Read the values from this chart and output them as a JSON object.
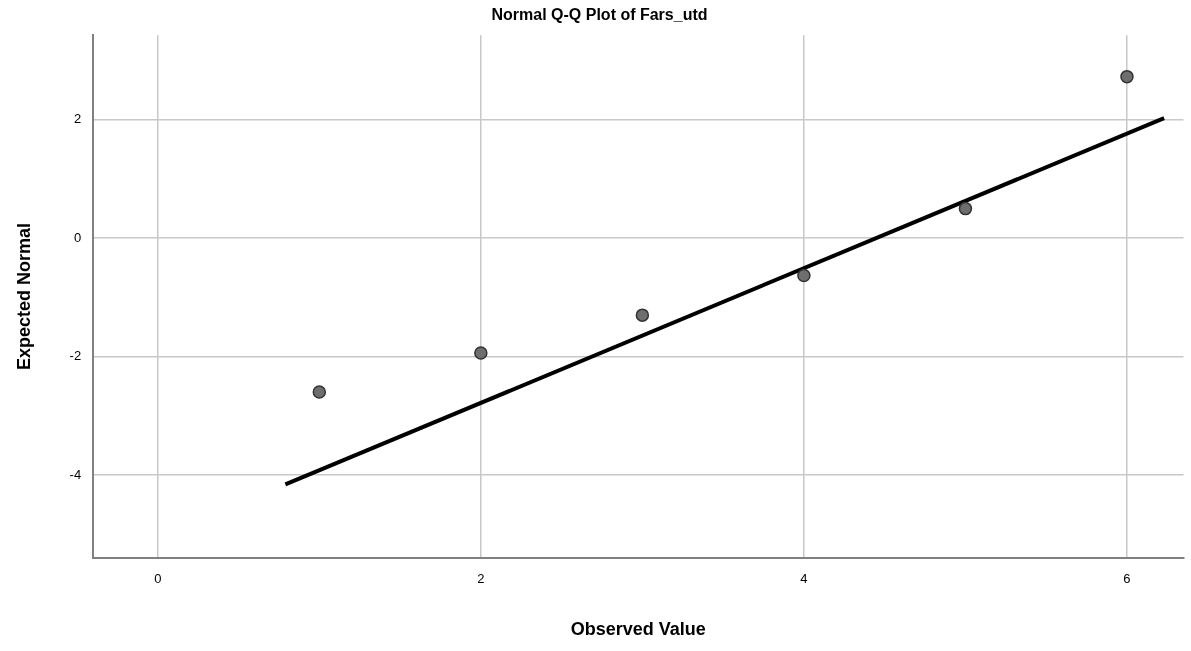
{
  "chart_data": {
    "type": "scatter",
    "title": "Normal Q-Q Plot of Fars_utd",
    "xlabel": "Observed Value",
    "ylabel": "Expected Normal",
    "xlim": [
      -0.4,
      6.35
    ],
    "xticks": [
      0,
      2,
      4,
      6
    ],
    "ylim": [
      -5.4,
      3.43
    ],
    "yticks": [
      -4,
      -2,
      0,
      2
    ],
    "grid": true,
    "legend": false,
    "marker": "circle",
    "series": [
      {
        "type": "scatter",
        "color": "#6e6e6e",
        "x": [
          1,
          2,
          3,
          4,
          5,
          6
        ],
        "values": [
          -2.6,
          -1.94,
          -1.3,
          -0.63,
          0.5,
          2.73
        ]
      },
      {
        "type": "line",
        "color": "#000000",
        "line_style": "solid",
        "marker": "none",
        "x": [
          0.79,
          6.23
        ],
        "values": [
          -4.16,
          2.03
        ]
      }
    ]
  }
}
